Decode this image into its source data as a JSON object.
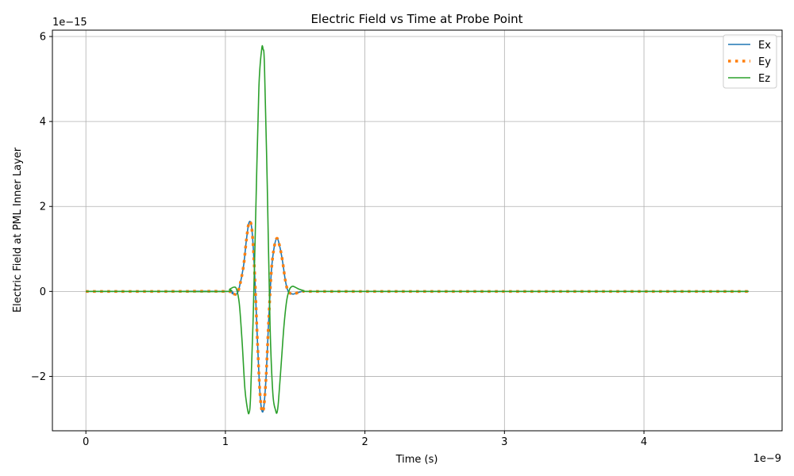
{
  "chart_data": {
    "type": "line",
    "title": "Electric Field vs Time at Probe Point",
    "xlabel": "Time (s)",
    "ylabel": "Electric Field at PML Inner Layer",
    "x_offset_text": "1e−9",
    "y_offset_text": "1e−15",
    "xlim": [
      -0.24,
      4.99
    ],
    "ylim": [
      -3.28,
      6.15
    ],
    "xticks": [
      0,
      1,
      2,
      3,
      4
    ],
    "xtick_labels": [
      "0",
      "1",
      "2",
      "3",
      "4"
    ],
    "yticks": [
      -2,
      0,
      2,
      4,
      6
    ],
    "ytick_labels": [
      "−2",
      "0",
      "2",
      "4",
      "6"
    ],
    "grid": true,
    "legend_position": "top-right",
    "series": [
      {
        "name": "Ex",
        "color": "#1f77b4",
        "style": "solid",
        "x": [
          0,
          0.5,
          1.0,
          1.05,
          1.08,
          1.1,
          1.13,
          1.15,
          1.17,
          1.19,
          1.21,
          1.23,
          1.25,
          1.27,
          1.29,
          1.31,
          1.33,
          1.35,
          1.37,
          1.39,
          1.41,
          1.43,
          1.45,
          1.48,
          1.5,
          1.55,
          1.6,
          2.0,
          3.0,
          4.0,
          4.75
        ],
        "values": [
          0,
          0,
          0,
          -0.05,
          -0.06,
          0.1,
          0.6,
          1.2,
          1.63,
          1.45,
          0.4,
          -1.2,
          -2.5,
          -2.82,
          -2.1,
          -0.7,
          0.5,
          1.05,
          1.25,
          1.05,
          0.7,
          0.25,
          0.0,
          -0.06,
          -0.05,
          0,
          0,
          0,
          0,
          0,
          0
        ]
      },
      {
        "name": "Ey",
        "color": "#ff7f0e",
        "style": "dotted",
        "x": [
          0,
          0.5,
          1.0,
          1.05,
          1.08,
          1.1,
          1.13,
          1.15,
          1.17,
          1.19,
          1.21,
          1.23,
          1.25,
          1.27,
          1.29,
          1.31,
          1.33,
          1.35,
          1.37,
          1.39,
          1.41,
          1.43,
          1.45,
          1.48,
          1.5,
          1.55,
          1.6,
          2.0,
          3.0,
          4.0,
          4.75
        ],
        "values": [
          0,
          0,
          0,
          -0.05,
          -0.06,
          0.1,
          0.6,
          1.2,
          1.63,
          1.45,
          0.4,
          -1.2,
          -2.5,
          -2.82,
          -2.1,
          -0.7,
          0.5,
          1.05,
          1.25,
          1.05,
          0.7,
          0.25,
          0.0,
          -0.06,
          -0.05,
          0,
          0,
          0,
          0,
          0,
          0
        ]
      },
      {
        "name": "Ez",
        "color": "#2ca02c",
        "style": "solid",
        "x": [
          0,
          0.5,
          1.0,
          1.03,
          1.06,
          1.08,
          1.1,
          1.12,
          1.14,
          1.16,
          1.17,
          1.18,
          1.2,
          1.22,
          1.24,
          1.26,
          1.27,
          1.28,
          1.3,
          1.32,
          1.34,
          1.36,
          1.37,
          1.38,
          1.4,
          1.42,
          1.44,
          1.46,
          1.48,
          1.5,
          1.53,
          1.56,
          1.6,
          2.0,
          3.0,
          4.0,
          4.75
        ],
        "values": [
          0,
          0,
          0,
          0.05,
          0.1,
          0.05,
          -0.3,
          -1.2,
          -2.3,
          -2.8,
          -2.85,
          -2.5,
          -0.5,
          2.2,
          4.8,
          5.7,
          5.7,
          5.3,
          2.5,
          -0.8,
          -2.4,
          -2.8,
          -2.85,
          -2.6,
          -1.7,
          -0.8,
          -0.2,
          0.05,
          0.12,
          0.1,
          0.05,
          0.02,
          0,
          0,
          0,
          0,
          0
        ]
      }
    ]
  }
}
